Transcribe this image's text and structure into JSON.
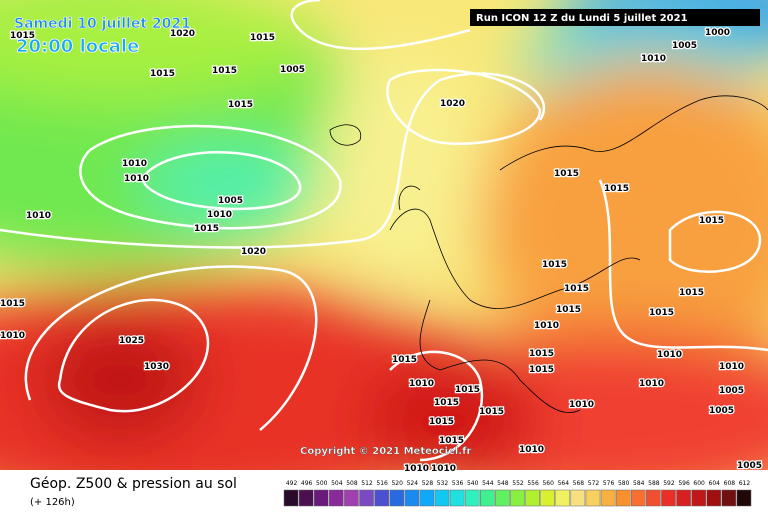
{
  "header": {
    "date": "Samedi 10 juillet 2021",
    "time": "20:00 locale",
    "run": "Run ICON 12 Z du Lundi 5 juillet 2021"
  },
  "footer": {
    "title": "Géop. Z500 & pression au sol",
    "lead": "(+ 126h)",
    "copyright": "Copyright © 2021 Meteociel.fr"
  },
  "colorbar": {
    "labels": [
      492,
      496,
      500,
      504,
      508,
      512,
      516,
      520,
      524,
      528,
      532,
      536,
      540,
      544,
      548,
      552,
      556,
      560,
      564,
      568,
      572,
      576,
      580,
      584,
      588,
      592,
      596,
      600,
      604,
      608,
      612
    ],
    "colors": [
      "#2a0a2a",
      "#4a1050",
      "#6a1a7a",
      "#8a2a9a",
      "#a040b0",
      "#7a4ac0",
      "#4a50d0",
      "#2a6ae0",
      "#1a8af0",
      "#10a8f8",
      "#10c8f0",
      "#20e0e0",
      "#30f0c0",
      "#40f090",
      "#60f060",
      "#88f040",
      "#b0f030",
      "#d8f030",
      "#f0f060",
      "#f8e080",
      "#f8d060",
      "#f8b040",
      "#f89030",
      "#f87030",
      "#f05030",
      "#e83028",
      "#d82020",
      "#c01818",
      "#a01010",
      "#701010",
      "#200808"
    ]
  },
  "isobars": [
    1015,
    1020,
    1015,
    1015,
    1015,
    1005,
    1015,
    1020,
    1010,
    1010,
    1005,
    1010,
    1015,
    1010,
    1020,
    1015,
    1015,
    1015,
    1015,
    1015,
    1015,
    1015,
    1015,
    1010,
    1015,
    1010,
    1025,
    1030,
    1015,
    1015,
    1015,
    1010,
    1010,
    1010,
    1015,
    1015,
    1005,
    1015,
    1015,
    1010,
    1005,
    1015,
    1010,
    1010,
    1010,
    1005,
    1010,
    1005,
    1000,
    1010
  ]
}
